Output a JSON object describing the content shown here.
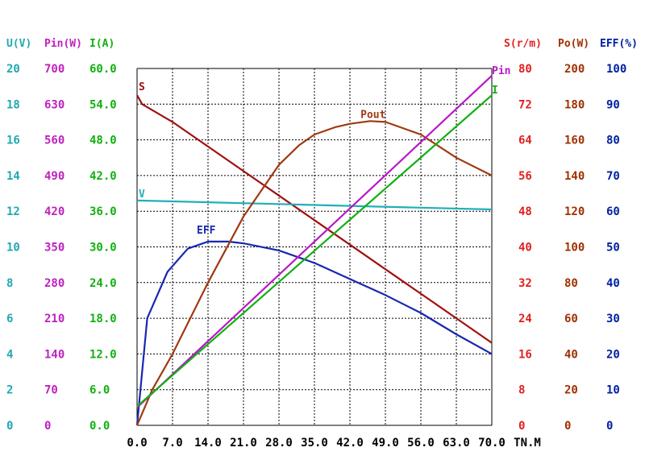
{
  "chart_data": {
    "type": "line",
    "x_ticks": [
      "0.0",
      "7.0",
      "14.0",
      "21.0",
      "28.0",
      "35.0",
      "42.0",
      "49.0",
      "56.0",
      "63.0",
      "70.0"
    ],
    "x_unit": "TN.M",
    "xlim": [
      0,
      70
    ],
    "grid": true,
    "left_axes": [
      {
        "header": "U(V)",
        "color": "#20a8b0",
        "ticks": [
          "0",
          "2",
          "4",
          "6",
          "8",
          "10",
          "12",
          "14",
          "16",
          "18",
          "20"
        ]
      },
      {
        "header": "Pin(W)",
        "color": "#c020c0",
        "ticks": [
          "0",
          "70",
          "140",
          "210",
          "280",
          "350",
          "420",
          "490",
          "560",
          "630",
          "700"
        ]
      },
      {
        "header": "I(A)",
        "color": "#10b010",
        "ticks": [
          "0.0",
          "6.0",
          "12.0",
          "18.0",
          "24.0",
          "30.0",
          "36.0",
          "42.0",
          "48.0",
          "54.0",
          "60.0"
        ]
      }
    ],
    "right_axes": [
      {
        "header": "S(r/m)",
        "color": "#e02020",
        "ticks": [
          "0",
          "8",
          "16",
          "24",
          "32",
          "40",
          "48",
          "56",
          "64",
          "72",
          "80"
        ]
      },
      {
        "header": "Po(W)",
        "color": "#a03000",
        "ticks": [
          "0",
          "20",
          "40",
          "60",
          "80",
          "100",
          "120",
          "140",
          "160",
          "180",
          "200"
        ]
      },
      {
        "header": "EFF(%)",
        "color": "#0020a0",
        "ticks": [
          "0",
          "10",
          "20",
          "30",
          "40",
          "50",
          "60",
          "70",
          "80",
          "90",
          "100"
        ]
      }
    ],
    "series": [
      {
        "name": "S",
        "color": "#a01010",
        "ymax": 80,
        "x": [
          0,
          1,
          7,
          14,
          21,
          28,
          35,
          42,
          49,
          56,
          63,
          70
        ],
        "y": [
          74,
          72,
          68,
          62.5,
          57,
          51.5,
          46,
          40.5,
          35,
          29.5,
          24,
          18.5
        ]
      },
      {
        "name": "V",
        "color": "#20b0b8",
        "ymax": 20,
        "x": [
          0,
          14,
          28,
          42,
          56,
          70
        ],
        "y": [
          12.6,
          12.5,
          12.4,
          12.3,
          12.2,
          12.1
        ]
      },
      {
        "name": "EFF",
        "color": "#1828b0",
        "ymax": 100,
        "x": [
          0,
          2,
          6,
          10,
          14,
          18,
          21,
          28,
          35,
          42,
          49,
          56,
          63,
          70
        ],
        "y": [
          0,
          30,
          43,
          49.5,
          51.5,
          51.5,
          51,
          49,
          45.5,
          41,
          36.5,
          31.5,
          25.5,
          20
        ]
      },
      {
        "name": "Pout",
        "color": "#a03a10",
        "ymax": 200,
        "x": [
          0,
          3,
          7,
          14,
          21,
          28,
          32,
          35,
          39,
          42,
          46,
          49,
          56,
          63,
          70
        ],
        "y": [
          0,
          20,
          40,
          80,
          117,
          146,
          157,
          163,
          167,
          169,
          170.5,
          170,
          163,
          150,
          140
        ]
      },
      {
        "name": "Pin",
        "color": "#b818c8",
        "ymax": 700,
        "x": [
          0,
          70
        ],
        "y": [
          35,
          686
        ]
      },
      {
        "name": "I",
        "color": "#10b010",
        "ymax": 60,
        "x": [
          0,
          70
        ],
        "y": [
          3.2,
          55.5
        ]
      }
    ]
  }
}
